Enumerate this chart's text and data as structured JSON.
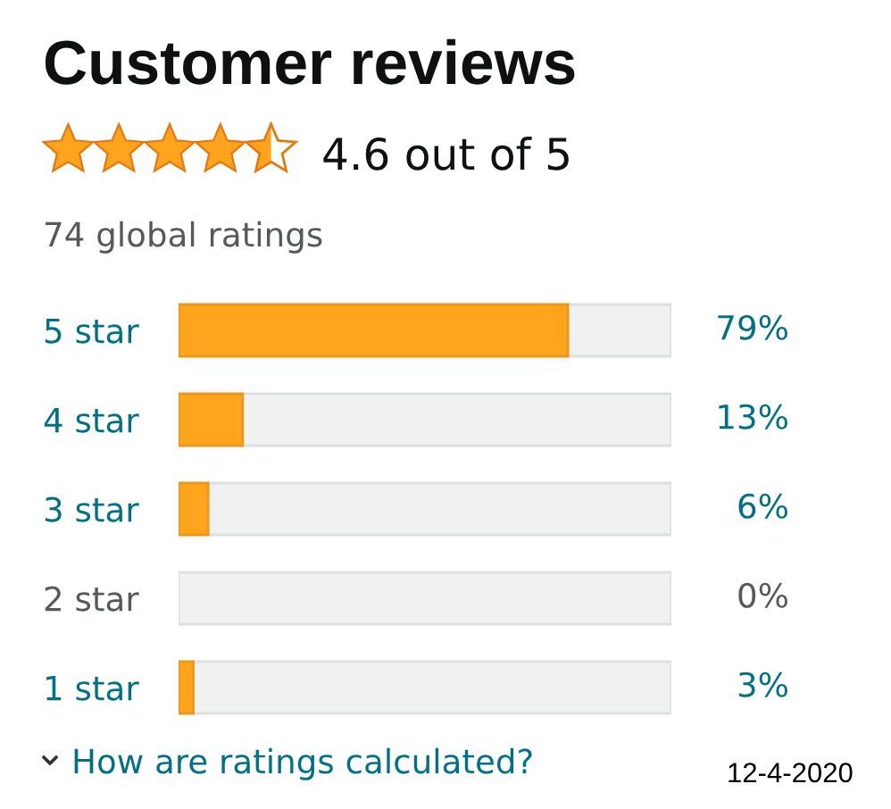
{
  "chart_data": {
    "type": "bar",
    "orientation": "horizontal",
    "stacked": true,
    "title": "Customer reviews",
    "categories": [
      "5 star",
      "4 star",
      "3 star",
      "2 star",
      "1 star"
    ],
    "series": [
      {
        "color": "#ffa41c",
        "values": [
          79,
          13,
          6,
          0,
          3
        ],
        "value_labels": [
          "79%",
          "13%",
          "6%",
          "0%",
          "3%"
        ]
      },
      {
        "color": "#f0f2f2",
        "values": [
          21,
          87,
          94,
          100,
          97
        ]
      }
    ],
    "xlim": [
      0,
      100
    ],
    "tick_labels": "y",
    "annotations": [
      "4.6 out of 5",
      "74 global ratings",
      "How are ratings calculated?",
      "12-4-2020"
    ]
  }
}
